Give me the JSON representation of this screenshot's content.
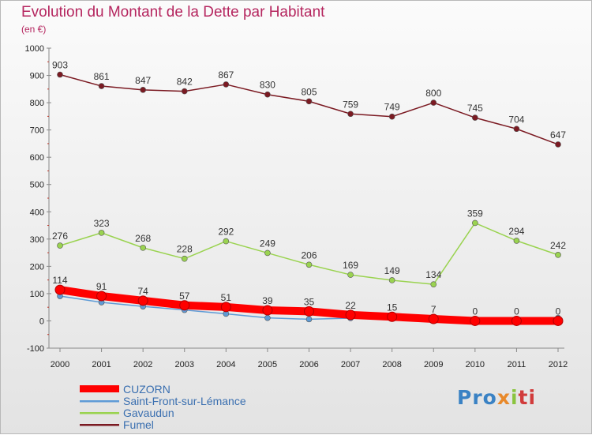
{
  "header": {
    "title": "Evolution du Montant de la Dette par Habitant",
    "unit": "(en €)"
  },
  "logo": {
    "parts": [
      "Pro",
      "x",
      "i",
      "ti"
    ]
  },
  "colors": {
    "title": "#b5265f",
    "legend_text": "#3a6fb0"
  },
  "chart_data": {
    "type": "line",
    "x": [
      2000,
      2001,
      2002,
      2003,
      2004,
      2005,
      2006,
      2007,
      2008,
      2009,
      2010,
      2011,
      2012
    ],
    "ylim": [
      -100,
      1000
    ],
    "yticks": [
      -100,
      0,
      100,
      200,
      300,
      400,
      500,
      600,
      700,
      800,
      900,
      1000
    ],
    "grid": false,
    "legend_position": "bottom-left",
    "series": [
      {
        "name": "Fumel",
        "color": "#7b1a22",
        "values": [
          903,
          861,
          847,
          842,
          867,
          830,
          805,
          759,
          749,
          800,
          745,
          704,
          647
        ]
      },
      {
        "name": "Gavaudun",
        "color": "#9ad350",
        "values": [
          276,
          323,
          268,
          228,
          292,
          249,
          206,
          169,
          149,
          134,
          359,
          294,
          242
        ]
      },
      {
        "name": "Saint-Front-sur-Lémance",
        "color": "#5e9bd6",
        "values": [
          91,
          68,
          53,
          40,
          26,
          11,
          6,
          10,
          10,
          2,
          0,
          0,
          11
        ]
      },
      {
        "name": "CUZORN",
        "color": "#ff0000",
        "values": [
          114,
          91,
          74,
          57,
          51,
          39,
          35,
          22,
          15,
          7,
          0,
          0,
          0
        ]
      }
    ],
    "data_label_series": [
      "Fumel",
      "Gavaudun",
      "CUZORN"
    ],
    "legend_order": [
      "CUZORN",
      "Saint-Front-sur-Lémance",
      "Gavaudun",
      "Fumel"
    ]
  }
}
